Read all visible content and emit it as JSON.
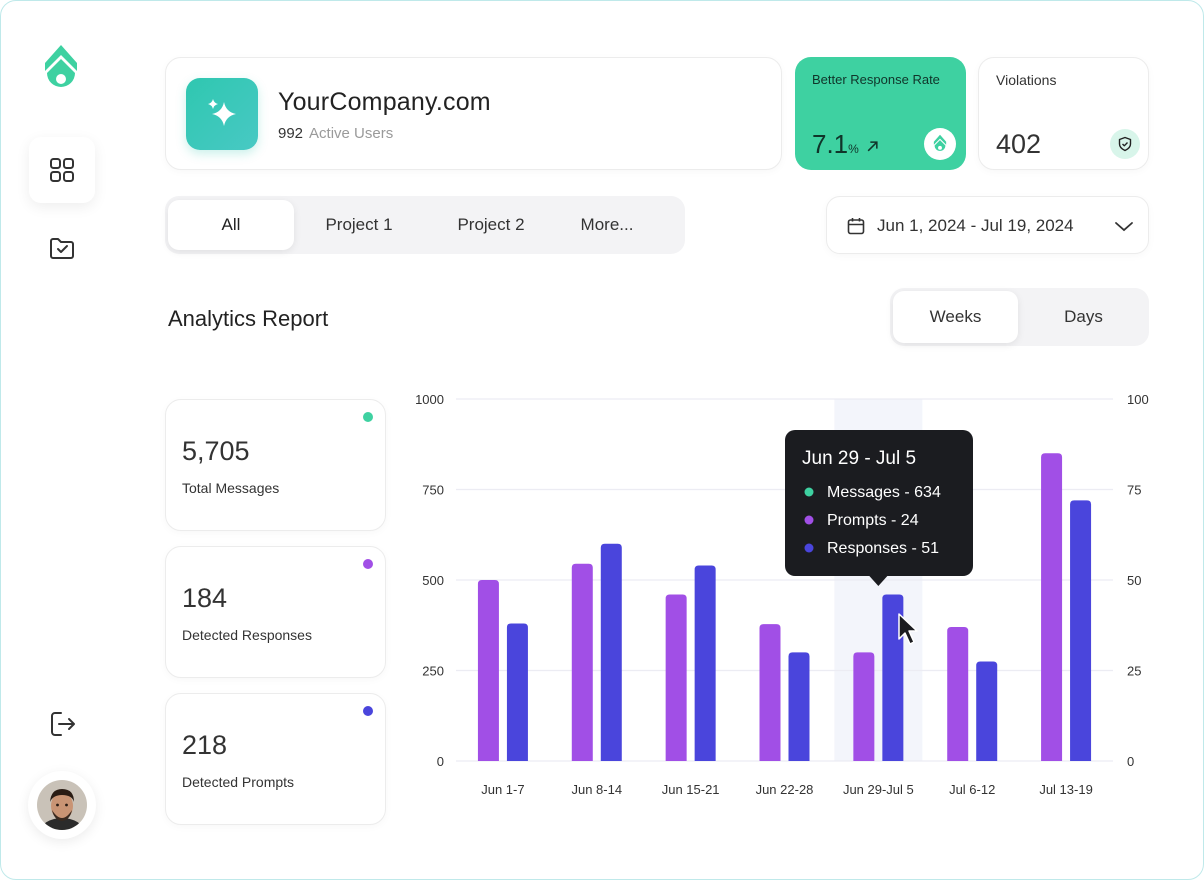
{
  "company": {
    "name": "YourCompany.com",
    "active_users": "992",
    "active_users_label": "Active Users"
  },
  "response_rate": {
    "title": "Better Response Rate",
    "value": "7.1",
    "unit": "%"
  },
  "violations": {
    "title": "Violations",
    "value": "402"
  },
  "tabs": [
    {
      "label": "All"
    },
    {
      "label": "Project 1"
    },
    {
      "label": "Project 2"
    },
    {
      "label": "More..."
    }
  ],
  "date_range": "Jun 1, 2024 - Jul 19, 2024",
  "section_title": "Analytics Report",
  "granularity": [
    {
      "label": "Weeks"
    },
    {
      "label": "Days"
    }
  ],
  "stats": [
    {
      "value": "5,705",
      "label": "Total Messages",
      "color": "#3ed1a1"
    },
    {
      "value": "184",
      "label": "Detected Responses",
      "color": "#a14fe6"
    },
    {
      "value": "218",
      "label": "Detected Prompts",
      "color": "#4a45dc"
    }
  ],
  "tooltip": {
    "title": "Jun 29 - Jul 5",
    "items": [
      {
        "label": "Messages - 634",
        "color": "#3ed1a1"
      },
      {
        "label": "Prompts - 24",
        "color": "#a14fe6"
      },
      {
        "label": "Responses - 51",
        "color": "#4a45dc"
      }
    ]
  },
  "chart_data": {
    "type": "bar",
    "categories": [
      "Jun 1-7",
      "Jun 8-14",
      "Jun 15-21",
      "Jun 22-28",
      "Jun 29-Jul 5",
      "Jul 6-12",
      "Jul 13-19"
    ],
    "series": [
      {
        "color": "#a14fe6",
        "axis": "left",
        "values": [
          500,
          545,
          460,
          378,
          300,
          370,
          850
        ]
      },
      {
        "color": "#4a45dc",
        "axis": "right",
        "values": [
          38,
          60,
          54,
          30,
          46,
          27.5,
          72
        ]
      }
    ],
    "y_left": {
      "min": 0,
      "max": 1000,
      "ticks": [
        "0",
        "250",
        "500",
        "750",
        "1000"
      ]
    },
    "y_right": {
      "min": 0,
      "max": 100,
      "ticks": [
        "0",
        "25",
        "50",
        "75",
        "100"
      ]
    },
    "highlight_index": 4,
    "grid": true
  }
}
